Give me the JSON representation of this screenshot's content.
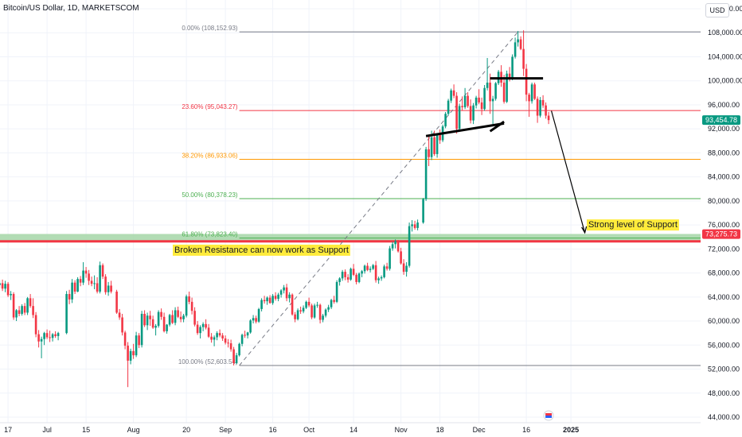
{
  "header": {
    "title": "Bitcoin/US Dollar, 1D, MARKETSCOM",
    "currency_button": "USD"
  },
  "chart_data": {
    "type": "candlestick",
    "y_axis": {
      "min": 44000,
      "max": 112000,
      "ticks": [
        "112,000.00",
        "108,000.00",
        "104,000.00",
        "100,000.00",
        "96,000.00",
        "92,000.00",
        "88,000.00",
        "84,000.00",
        "80,000.00",
        "76,000.00",
        "72,000.00",
        "68,000.00",
        "64,000.00",
        "60,000.00",
        "56,000.00",
        "52,000.00",
        "48,000.00",
        "44,000.00"
      ],
      "tick_values": [
        112000,
        108000,
        104000,
        100000,
        96000,
        92000,
        88000,
        84000,
        80000,
        76000,
        72000,
        68000,
        64000,
        60000,
        56000,
        52000,
        48000,
        44000
      ]
    },
    "x_axis": {
      "labels": [
        "17",
        "Jul",
        "15",
        "Aug",
        "20",
        "Sep",
        "16",
        "Oct",
        "14",
        "Nov",
        "18",
        "Dec",
        "16",
        "2025"
      ],
      "label_days": [
        0,
        14,
        28,
        45,
        64,
        78,
        95,
        108,
        124,
        141,
        155,
        169,
        186,
        202
      ],
      "day_min": -3,
      "day_max": 213
    },
    "fib_levels": [
      {
        "label": "0.00% (108,152.93)",
        "price": 108152.93,
        "color": "#787b86"
      },
      {
        "label": "23.60% (95,043.27)",
        "price": 95043.27,
        "color": "#f23645"
      },
      {
        "label": "38.20% (86,933.06)",
        "price": 86933.06,
        "color": "#ff9800"
      },
      {
        "label": "50.00% (80,378.23)",
        "price": 80378.23,
        "color": "#4caf50"
      },
      {
        "label": "61.80% (73,823.40)",
        "price": 73823.4,
        "color": "#4caf50"
      },
      {
        "label": "100.00% (52,603.54)",
        "price": 52603.54,
        "color": "#787b86"
      }
    ],
    "support_band": {
      "from": 73300,
      "to": 74500,
      "color": "#a5d6a7"
    },
    "resistance_line": {
      "price": 73275.73,
      "label": "73,275.73",
      "color": "#f23645"
    },
    "current_price": {
      "price": 93454.78,
      "label": "93,454.78",
      "color": "#089981"
    },
    "annotations": {
      "broken_resistance": "Broken Resistance can now work as Support",
      "strong_support": "Strong level of Support"
    },
    "candles_ohlc_by_day": [
      [
        -3,
        66000,
        66800,
        65500,
        66300
      ],
      [
        -2,
        66300,
        66900,
        65000,
        65400
      ],
      [
        -1,
        65400,
        66700,
        64800,
        66200
      ],
      [
        0,
        66200,
        66500,
        64000,
        64300
      ],
      [
        1,
        64300,
        65000,
        63500,
        64500
      ],
      [
        2,
        64500,
        64800,
        60200,
        60600
      ],
      [
        3,
        60600,
        62000,
        60000,
        61800
      ],
      [
        4,
        61800,
        62500,
        60800,
        61200
      ],
      [
        5,
        61200,
        62800,
        60900,
        62500
      ],
      [
        6,
        62500,
        63000,
        61000,
        61400
      ],
      [
        7,
        61400,
        64000,
        61000,
        63800
      ],
      [
        8,
        63800,
        64500,
        62200,
        62500
      ],
      [
        9,
        62500,
        63800,
        60500,
        61000
      ],
      [
        10,
        61000,
        61500,
        57300,
        57800
      ],
      [
        11,
        57800,
        58500,
        55600,
        56600
      ],
      [
        12,
        56600,
        57400,
        53800,
        57000
      ],
      [
        13,
        57000,
        58200,
        56000,
        58000
      ],
      [
        14,
        58000,
        58600,
        57000,
        57300
      ],
      [
        15,
        57300,
        58400,
        56500,
        57200
      ],
      [
        16,
        57200,
        58000,
        56600,
        57800
      ],
      [
        17,
        57800,
        58300,
        57200,
        57500
      ],
      [
        18,
        57500,
        58200,
        56800,
        58000
      ],
      [
        21,
        58000,
        65000,
        57800,
        64500
      ],
      [
        22,
        64500,
        65200,
        62800,
        63600
      ],
      [
        23,
        63600,
        67000,
        63000,
        66400
      ],
      [
        24,
        66400,
        66800,
        64500,
        64900
      ],
      [
        25,
        64900,
        67300,
        64800,
        67000
      ],
      [
        26,
        67000,
        67500,
        65800,
        66400
      ],
      [
        27,
        66400,
        69800,
        66000,
        68400
      ],
      [
        28,
        68400,
        69000,
        67200,
        67900
      ],
      [
        29,
        67900,
        68500,
        66000,
        66700
      ],
      [
        30,
        66700,
        67400,
        65800,
        66200
      ],
      [
        31,
        66200,
        67600,
        65300,
        66300
      ],
      [
        32,
        66300,
        67300,
        64600,
        64900
      ],
      [
        33,
        64900,
        69900,
        64600,
        69300
      ],
      [
        34,
        69300,
        69600,
        67000,
        67400
      ],
      [
        35,
        67400,
        67800,
        64400,
        64800
      ],
      [
        36,
        64800,
        66500,
        64200,
        65900
      ],
      [
        37,
        65900,
        66700,
        64600,
        64900
      ],
      [
        39,
        64900,
        65200,
        61200,
        61400
      ],
      [
        40,
        61400,
        62000,
        60200,
        60600
      ],
      [
        41,
        60600,
        61200,
        57600,
        58100
      ],
      [
        42,
        58100,
        58400,
        55300,
        55900
      ],
      [
        43,
        55900,
        56500,
        49000,
        53400
      ],
      [
        44,
        53400,
        55400,
        52800,
        55000
      ],
      [
        45,
        55000,
        56200,
        53700,
        54300
      ],
      [
        46,
        54300,
        58200,
        54000,
        57600
      ],
      [
        47,
        57600,
        58000,
        55500,
        56000
      ],
      [
        48,
        56000,
        61700,
        55600,
        61200
      ],
      [
        49,
        61200,
        61800,
        59000,
        59300
      ],
      [
        50,
        59300,
        61400,
        58500,
        60900
      ],
      [
        51,
        60900,
        61700,
        59200,
        60300
      ],
      [
        52,
        60300,
        60900,
        58700,
        58900
      ],
      [
        53,
        58900,
        59500,
        57600,
        59200
      ],
      [
        54,
        59200,
        61800,
        58900,
        61500
      ],
      [
        55,
        61500,
        62100,
        60200,
        60700
      ],
      [
        56,
        60700,
        61400,
        58100,
        58300
      ],
      [
        57,
        58300,
        59500,
        57900,
        59400
      ],
      [
        58,
        59400,
        61200,
        59100,
        61000
      ],
      [
        59,
        61000,
        61800,
        59500,
        59700
      ],
      [
        60,
        59700,
        62300,
        59300,
        61800
      ],
      [
        61,
        61800,
        62400,
        60500,
        60700
      ],
      [
        62,
        60700,
        61600,
        59800,
        60300
      ],
      [
        63,
        60300,
        61200,
        59800,
        60900
      ],
      [
        64,
        60900,
        64400,
        60600,
        64100
      ],
      [
        65,
        64100,
        64900,
        62800,
        63200
      ],
      [
        66,
        63200,
        63900,
        61100,
        61700
      ],
      [
        67,
        61700,
        62300,
        59100,
        59400
      ],
      [
        68,
        59400,
        60000,
        57700,
        58000
      ],
      [
        69,
        58000,
        59300,
        57100,
        59000
      ],
      [
        70,
        59000,
        59800,
        58300,
        59500
      ],
      [
        71,
        59500,
        60300,
        58600,
        58900
      ],
      [
        72,
        58900,
        59500,
        57200,
        57400
      ],
      [
        73,
        57400,
        58000,
        56400,
        56900
      ],
      [
        74,
        56900,
        57600,
        55800,
        57300
      ],
      [
        75,
        57300,
        58300,
        56800,
        58000
      ],
      [
        76,
        58000,
        58600,
        57300,
        57600
      ],
      [
        77,
        57600,
        58000,
        56700,
        57100
      ],
      [
        78,
        57100,
        57600,
        56100,
        56400
      ],
      [
        79,
        56400,
        57000,
        55600,
        56300
      ],
      [
        80,
        56300,
        56900,
        54900,
        55300
      ],
      [
        81,
        55300,
        55700,
        52600,
        53000
      ],
      [
        82,
        53000,
        54700,
        52800,
        54300
      ],
      [
        83,
        54300,
        56400,
        54100,
        56200
      ],
      [
        84,
        56200,
        57900,
        55800,
        57700
      ],
      [
        85,
        57700,
        58400,
        57200,
        57600
      ],
      [
        86,
        57600,
        58200,
        57100,
        58100
      ],
      [
        87,
        58100,
        60300,
        57900,
        60100
      ],
      [
        88,
        60100,
        61000,
        59600,
        60500
      ],
      [
        89,
        60500,
        60900,
        59600,
        59900
      ],
      [
        90,
        59900,
        62200,
        59700,
        62000
      ],
      [
        91,
        62000,
        63800,
        61600,
        63500
      ],
      [
        92,
        63500,
        64200,
        62900,
        63300
      ],
      [
        93,
        63300,
        64100,
        62700,
        63900
      ],
      [
        94,
        63900,
        64300,
        62900,
        63000
      ],
      [
        95,
        63000,
        64500,
        62700,
        64200
      ],
      [
        96,
        64200,
        64800,
        63400,
        63700
      ],
      [
        97,
        63700,
        64700,
        63300,
        64400
      ],
      [
        98,
        64400,
        65300,
        63900,
        65100
      ],
      [
        99,
        65100,
        66000,
        64600,
        65600
      ],
      [
        100,
        65600,
        66200,
        63300,
        63800
      ],
      [
        101,
        63800,
        64800,
        63100,
        64400
      ],
      [
        102,
        64400,
        64600,
        60900,
        61100
      ],
      [
        103,
        61100,
        61500,
        59800,
        60300
      ],
      [
        104,
        60300,
        62100,
        60100,
        61800
      ],
      [
        105,
        61800,
        62400,
        61200,
        61600
      ],
      [
        106,
        61600,
        62600,
        61300,
        62200
      ],
      [
        107,
        62200,
        63400,
        62000,
        63200
      ],
      [
        108,
        63200,
        63900,
        62300,
        62600
      ],
      [
        109,
        62600,
        62900,
        60300,
        60600
      ],
      [
        110,
        60600,
        62900,
        60400,
        62600
      ],
      [
        111,
        62600,
        63200,
        62200,
        62700
      ],
      [
        112,
        62700,
        62900,
        59600,
        60200
      ],
      [
        113,
        60200,
        61200,
        59800,
        60900
      ],
      [
        114,
        60900,
        62100,
        60600,
        61900
      ],
      [
        115,
        61900,
        62700,
        61500,
        62300
      ],
      [
        116,
        62300,
        63700,
        62000,
        63500
      ],
      [
        117,
        63500,
        64200,
        62900,
        63200
      ],
      [
        118,
        63200,
        66800,
        63000,
        66500
      ],
      [
        119,
        66500,
        67300,
        65900,
        67100
      ],
      [
        120,
        67100,
        68500,
        66700,
        68200
      ],
      [
        121,
        68200,
        68600,
        66800,
        67300
      ],
      [
        122,
        67300,
        67800,
        66400,
        66900
      ],
      [
        123,
        66900,
        68900,
        66700,
        68700
      ],
      [
        124,
        68700,
        69500,
        67500,
        67700
      ],
      [
        125,
        67700,
        68000,
        66100,
        66500
      ],
      [
        126,
        66500,
        68100,
        66300,
        67900
      ],
      [
        127,
        67900,
        68500,
        67300,
        68300
      ],
      [
        128,
        68300,
        69400,
        67900,
        69200
      ],
      [
        129,
        69200,
        69700,
        68300,
        68500
      ],
      [
        130,
        68500,
        69100,
        68100,
        68700
      ],
      [
        131,
        68700,
        69500,
        68500,
        69300
      ],
      [
        132,
        69300,
        70000,
        66400,
        66800
      ],
      [
        133,
        66800,
        67400,
        66200,
        67100
      ],
      [
        134,
        67100,
        67600,
        66700,
        67300
      ],
      [
        135,
        67300,
        69400,
        67100,
        69100
      ],
      [
        136,
        69100,
        69700,
        68400,
        68700
      ],
      [
        137,
        68700,
        72500,
        68400,
        72100
      ],
      [
        138,
        72100,
        73200,
        71700,
        72800
      ],
      [
        139,
        72800,
        73600,
        72100,
        73300
      ],
      [
        140,
        73300,
        73500,
        71400,
        71600
      ],
      [
        141,
        71600,
        72200,
        69400,
        69600
      ],
      [
        142,
        69600,
        70300,
        67700,
        68200
      ],
      [
        143,
        68200,
        69800,
        67400,
        69200
      ],
      [
        144,
        69200,
        76400,
        68900,
        75800
      ],
      [
        145,
        75800,
        76800,
        74900,
        76100
      ],
      [
        146,
        76100,
        76700,
        75200,
        75500
      ],
      [
        147,
        75500,
        76900,
        75100,
        76400
      ],
      [
        149,
        76400,
        80500,
        76200,
        80300
      ],
      [
        150,
        80300,
        89000,
        80000,
        88600
      ],
      [
        151,
        88600,
        90800,
        85800,
        87300
      ],
      [
        152,
        87300,
        91700,
        86800,
        90600
      ],
      [
        153,
        90600,
        91700,
        87500,
        87800
      ],
      [
        154,
        87800,
        91300,
        87200,
        91000
      ],
      [
        155,
        91000,
        91900,
        89500,
        90100
      ],
      [
        156,
        90100,
        92700,
        89800,
        92400
      ],
      [
        157,
        92400,
        94800,
        92100,
        94500
      ],
      [
        158,
        94500,
        97000,
        94200,
        96700
      ],
      [
        159,
        96700,
        98700,
        96300,
        98400
      ],
      [
        160,
        98400,
        99400,
        97100,
        97500
      ],
      [
        161,
        97500,
        98100,
        91200,
        92000
      ],
      [
        162,
        92000,
        96200,
        91600,
        95800
      ],
      [
        163,
        95800,
        97400,
        95100,
        95600
      ],
      [
        164,
        95600,
        98800,
        95300,
        97500
      ],
      [
        165,
        97500,
        98100,
        95500,
        95800
      ],
      [
        166,
        95800,
        96900,
        92900,
        93400
      ],
      [
        167,
        93400,
        96300,
        92800,
        95900
      ],
      [
        168,
        95900,
        97500,
        95400,
        97200
      ],
      [
        169,
        97200,
        98600,
        96100,
        96400
      ],
      [
        170,
        96400,
        97200,
        94300,
        95300
      ],
      [
        171,
        95300,
        99300,
        95000,
        98800
      ],
      [
        172,
        98800,
        103800,
        98400,
        99700
      ],
      [
        173,
        99700,
        101200,
        94500,
        96600
      ],
      [
        174,
        96600,
        97500,
        92800,
        97000
      ],
      [
        175,
        97000,
        99800,
        96700,
        99600
      ],
      [
        176,
        99600,
        101800,
        99300,
        101500
      ],
      [
        177,
        101500,
        102600,
        99000,
        99700
      ],
      [
        178,
        99700,
        101000,
        96200,
        96500
      ],
      [
        179,
        96500,
        101700,
        96300,
        101200
      ],
      [
        180,
        101200,
        102300,
        99900,
        100400
      ],
      [
        181,
        100400,
        104400,
        100100,
        104000
      ],
      [
        182,
        104000,
        107200,
        103700,
        106400
      ],
      [
        183,
        106400,
        108300,
        105700,
        106900
      ],
      [
        184,
        106900,
        107400,
        105100,
        105300
      ],
      [
        185,
        105300,
        108400,
        100800,
        102000
      ],
      [
        186,
        102000,
        102800,
        96600,
        97700
      ],
      [
        187,
        97700,
        98000,
        94000,
        96600
      ],
      [
        188,
        96600,
        99700,
        96200,
        99400
      ],
      [
        189,
        99400,
        99700,
        96800,
        97000
      ],
      [
        190,
        97000,
        97400,
        93000,
        94200
      ],
      [
        191,
        94200,
        97300,
        93900,
        96800
      ],
      [
        192,
        96800,
        97600,
        95500,
        95900
      ],
      [
        193,
        95900,
        96400,
        93700,
        94200
      ],
      [
        194,
        94200,
        94800,
        92800,
        93454.78
      ]
    ]
  }
}
